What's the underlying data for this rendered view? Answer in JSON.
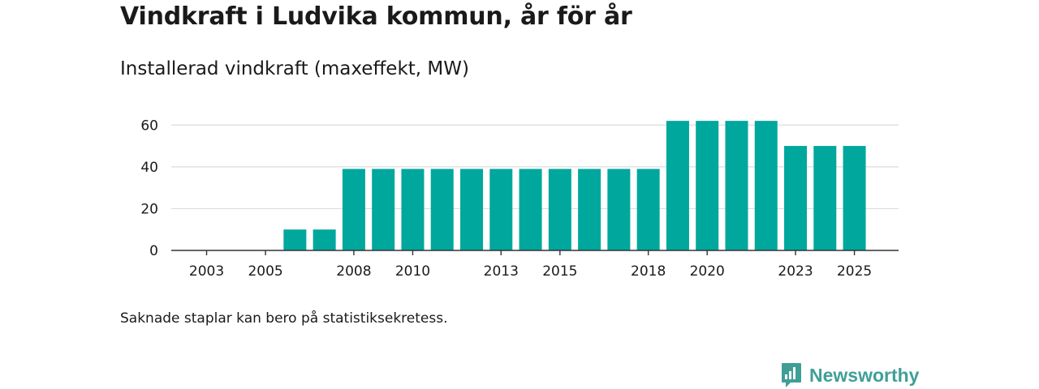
{
  "header": {
    "title": "Vindkraft i Ludvika kommun, år för år",
    "subtitle": "Installerad vindkraft (maxeffekt, MW)"
  },
  "footer": {
    "note": "Saknade staplar kan bero på statistiksekretess.",
    "brand_name": "Newsworthy"
  },
  "colors": {
    "bar": "#00a79d",
    "brand": "#3f9f97",
    "gridline": "#dcdcdc",
    "axis": "#333333"
  },
  "chart_data": {
    "type": "bar",
    "title": "Vindkraft i Ludvika kommun, år för år",
    "subtitle": "Installerad vindkraft (maxeffekt, MW)",
    "xlabel": "",
    "ylabel": "",
    "ylim": [
      0,
      70
    ],
    "yticks": [
      0,
      20,
      40,
      60
    ],
    "grid": true,
    "x_tick_labels": [
      2003,
      2005,
      2008,
      2010,
      2013,
      2015,
      2018,
      2020,
      2023,
      2025
    ],
    "x_range": [
      2001.8,
      2026.5
    ],
    "categories": [
      2002,
      2003,
      2004,
      2005,
      2006,
      2007,
      2008,
      2009,
      2010,
      2011,
      2012,
      2013,
      2014,
      2015,
      2016,
      2017,
      2018,
      2019,
      2020,
      2021,
      2022,
      2023,
      2024,
      2025
    ],
    "values": [
      0,
      0,
      0,
      0,
      10,
      10,
      39,
      39,
      39,
      39,
      39,
      39,
      39,
      39,
      39,
      39,
      39,
      62,
      62,
      62,
      62,
      50,
      50,
      50
    ]
  }
}
